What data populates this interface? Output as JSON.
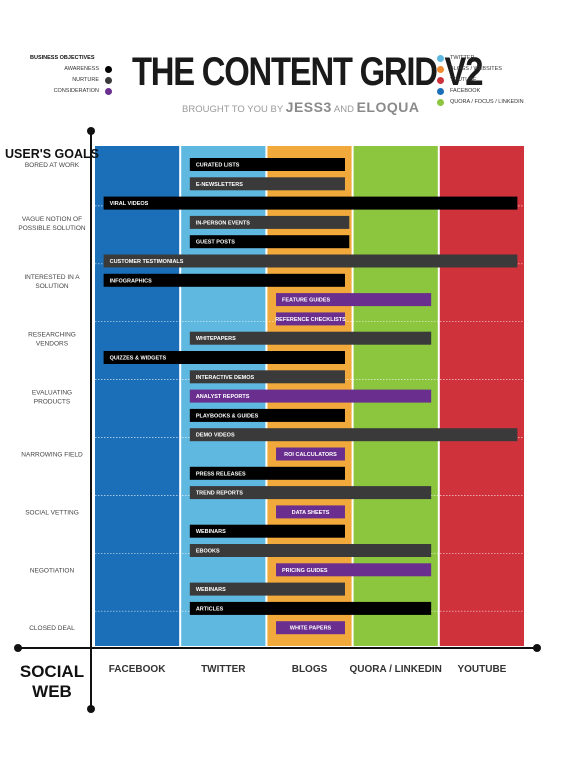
{
  "header": {
    "title": "THE CONTENT GRID V2",
    "byline_prefix": "BROUGHT TO YOU BY",
    "brand1": "JESS3",
    "byline_and": "AND",
    "brand2": "ELOQUA"
  },
  "legend_left": {
    "heading": "BUSINESS OBJECTIVES",
    "items": [
      {
        "label": "AWARENESS",
        "color": "#000000"
      },
      {
        "label": "NURTURE",
        "color": "#3a3a3a"
      },
      {
        "label": "CONSIDERATION",
        "color": "#6a2f8e"
      }
    ]
  },
  "legend_right": {
    "items": [
      {
        "label": "TWITTER",
        "color": "#5fb8e0"
      },
      {
        "label": "BLOGS / WEBSITES",
        "color": "#f08a2c"
      },
      {
        "label": "YOUTUBE",
        "color": "#d0323c"
      },
      {
        "label": "FACEBOOK",
        "color": "#1a6fb8"
      },
      {
        "label": "QUORA / FOCUS / LINKEDIN",
        "color": "#8cc63f"
      }
    ]
  },
  "chart_data": {
    "type": "table",
    "y_axis_title": "USER'S GOALS",
    "x_axis_title": "SOCIAL WEB",
    "columns": [
      {
        "label": "FACEBOOK",
        "color": "#1a6fb8"
      },
      {
        "label": "TWITTER",
        "color": "#5fb8e0"
      },
      {
        "label": "BLOGS",
        "color": "#f2a93b"
      },
      {
        "label": "QUORA / LINKEDIN",
        "color": "#8cc63f"
      },
      {
        "label": "YOUTUBE",
        "color": "#d0323c"
      }
    ],
    "goals": [
      {
        "label": "BORED AT WORK",
        "row": 1.5
      },
      {
        "label": "VAGUE NOTION OF POSSIBLE SOLUTION",
        "row": 4.5
      },
      {
        "label": "INTERESTED IN A SOLUTION",
        "row": 7.5
      },
      {
        "label": "RESEARCHING VENDORS",
        "row": 10.5
      },
      {
        "label": "EVALUATING PRODUCTS",
        "row": 13.5
      },
      {
        "label": "NARROWING FIELD",
        "row": 16.5
      },
      {
        "label": "SOCIAL VETTING",
        "row": 19.5
      },
      {
        "label": "NEGOTIATION",
        "row": 22.5
      },
      {
        "label": "CLOSED DEAL",
        "row": 25.5
      }
    ],
    "bars": [
      {
        "label": "CURATED LISTS",
        "row": 0,
        "start": 1.1,
        "end": 2.9,
        "type": "awareness"
      },
      {
        "label": "E-NEWSLETTERS",
        "row": 1,
        "start": 1.1,
        "end": 2.9,
        "type": "nurture"
      },
      {
        "label": "VIRAL VIDEOS",
        "row": 2,
        "start": 0.1,
        "end": 4.9,
        "type": "awareness"
      },
      {
        "label": "IN-PERSON EVENTS",
        "row": 3,
        "start": 1.1,
        "end": 2.95,
        "type": "nurture"
      },
      {
        "label": "GUEST POSTS",
        "row": 4,
        "start": 1.1,
        "end": 2.95,
        "type": "awareness"
      },
      {
        "label": "CUSTOMER TESTIMONIALS",
        "row": 5,
        "start": 0.1,
        "end": 4.9,
        "type": "nurture"
      },
      {
        "label": "INFOGRAPHICS",
        "row": 6,
        "start": 0.1,
        "end": 2.9,
        "type": "awareness"
      },
      {
        "label": "FEATURE GUIDES",
        "row": 7,
        "start": 2.1,
        "end": 3.9,
        "type": "consideration"
      },
      {
        "label": "REFERENCE CHECKLISTS",
        "row": 8,
        "start": 2.1,
        "end": 2.9,
        "type": "consideration"
      },
      {
        "label": "WHITEPAPERS",
        "row": 9,
        "start": 1.1,
        "end": 3.9,
        "type": "nurture"
      },
      {
        "label": "QUIZZES & WIDGETS",
        "row": 10,
        "start": 0.1,
        "end": 2.9,
        "type": "awareness"
      },
      {
        "label": "INTERACTIVE DEMOS",
        "row": 11,
        "start": 1.1,
        "end": 2.9,
        "type": "nurture"
      },
      {
        "label": "ANALYST REPORTS",
        "row": 12,
        "start": 1.1,
        "end": 3.9,
        "type": "consideration"
      },
      {
        "label": "PLAYBOOKS & GUIDES",
        "row": 13,
        "start": 1.1,
        "end": 2.9,
        "type": "awareness"
      },
      {
        "label": "DEMO VIDEOS",
        "row": 14,
        "start": 1.1,
        "end": 4.9,
        "type": "nurture"
      },
      {
        "label": "ROI CALCULATORS",
        "row": 15,
        "start": 2.1,
        "end": 2.9,
        "type": "consideration"
      },
      {
        "label": "PRESS RELEASES",
        "row": 16,
        "start": 1.1,
        "end": 2.9,
        "type": "awareness"
      },
      {
        "label": "TREND REPORTS",
        "row": 17,
        "start": 1.1,
        "end": 3.9,
        "type": "nurture"
      },
      {
        "label": "DATA SHEETS",
        "row": 18,
        "start": 2.1,
        "end": 2.9,
        "type": "consideration"
      },
      {
        "label": "WEBINARS",
        "row": 19,
        "start": 1.1,
        "end": 2.9,
        "type": "awareness"
      },
      {
        "label": "EBOOKS",
        "row": 20,
        "start": 1.1,
        "end": 3.9,
        "type": "nurture"
      },
      {
        "label": "PRICING GUIDES",
        "row": 21,
        "start": 2.1,
        "end": 3.9,
        "type": "consideration"
      },
      {
        "label": "WEBINARS",
        "row": 22,
        "start": 1.1,
        "end": 2.9,
        "type": "nurture"
      },
      {
        "label": "ARTICLES",
        "row": 23,
        "start": 1.1,
        "end": 3.9,
        "type": "awareness"
      },
      {
        "label": "WHITE PAPERS",
        "row": 24,
        "start": 2.1,
        "end": 2.9,
        "type": "consideration"
      }
    ]
  }
}
